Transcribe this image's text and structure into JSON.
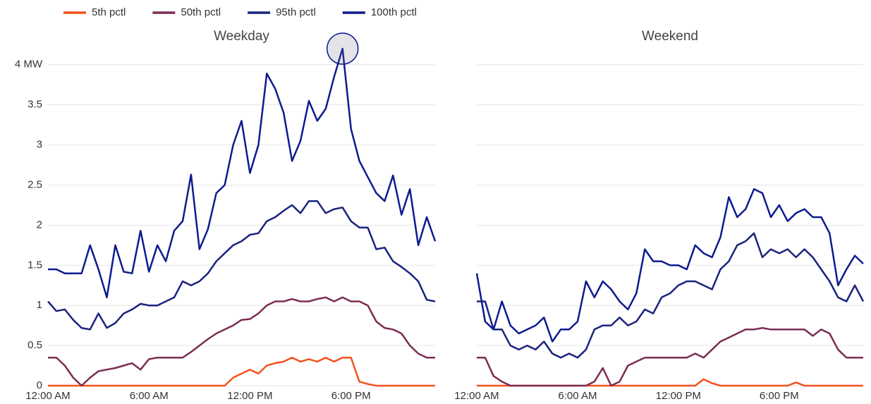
{
  "chart_data": [
    {
      "type": "line",
      "title": "Weekday",
      "x": [
        0,
        0.5,
        1,
        1.5,
        2,
        2.5,
        3,
        3.5,
        4,
        4.5,
        5,
        5.5,
        6,
        6.5,
        7,
        7.5,
        8,
        8.5,
        9,
        9.5,
        10,
        10.5,
        11,
        11.5,
        12,
        12.5,
        13,
        13.5,
        14,
        14.5,
        15,
        15.5,
        16,
        16.5,
        17,
        17.5,
        18,
        18.5,
        19,
        19.5,
        20,
        20.5,
        21,
        21.5,
        22,
        22.5,
        23
      ],
      "xlim": [
        0,
        23
      ],
      "xticks": [
        {
          "value": 0,
          "label": "12:00 AM"
        },
        {
          "value": 6,
          "label": "6:00 AM"
        },
        {
          "value": 12,
          "label": "12:00 PM"
        },
        {
          "value": 18,
          "label": "6:00 PM"
        }
      ],
      "ylim": [
        0,
        4.2
      ],
      "yticks": [
        0,
        0.5,
        1,
        1.5,
        2,
        2.5,
        3,
        3.5,
        {
          "value": 4,
          "label": "4 MW"
        }
      ],
      "grid": true,
      "series": [
        {
          "name": "5th pctl",
          "color": "#f4511e",
          "values": [
            0,
            0,
            0,
            0,
            0,
            0,
            0,
            0,
            0,
            0,
            0,
            0,
            0,
            0,
            0,
            0,
            0,
            0,
            0,
            0,
            0,
            0,
            0.1,
            0.15,
            0.2,
            0.15,
            0.25,
            0.28,
            0.3,
            0.35,
            0.3,
            0.33,
            0.3,
            0.35,
            0.3,
            0.35,
            0.35,
            0.05,
            0.02,
            0,
            0,
            0,
            0,
            0,
            0,
            0,
            0
          ]
        },
        {
          "name": "50th pctl",
          "color": "#7b2d52",
          "values": [
            0.35,
            0.35,
            0.25,
            0.1,
            0,
            0.1,
            0.18,
            0.2,
            0.22,
            0.25,
            0.28,
            0.2,
            0.33,
            0.35,
            0.35,
            0.35,
            0.35,
            0.42,
            0.5,
            0.58,
            0.65,
            0.7,
            0.75,
            0.82,
            0.83,
            0.9,
            1.0,
            1.05,
            1.05,
            1.08,
            1.05,
            1.05,
            1.08,
            1.1,
            1.05,
            1.1,
            1.05,
            1.05,
            1.0,
            0.8,
            0.72,
            0.7,
            0.65,
            0.5,
            0.4,
            0.35,
            0.35
          ]
        },
        {
          "name": "95th pctl",
          "color": "#1a237e",
          "values": [
            1.05,
            0.93,
            0.95,
            0.82,
            0.72,
            0.7,
            0.9,
            0.72,
            0.78,
            0.9,
            0.95,
            1.02,
            1.0,
            1.0,
            1.05,
            1.1,
            1.3,
            1.25,
            1.3,
            1.4,
            1.55,
            1.65,
            1.75,
            1.8,
            1.88,
            1.9,
            2.05,
            2.1,
            2.18,
            2.25,
            2.15,
            2.3,
            2.3,
            2.15,
            2.2,
            2.22,
            2.05,
            1.97,
            1.97,
            1.7,
            1.72,
            1.55,
            1.48,
            1.4,
            1.3,
            1.07,
            1.05
          ]
        },
        {
          "name": "100th pctl",
          "color": "#0d1b8f",
          "values": [
            1.45,
            1.45,
            1.4,
            1.4,
            1.4,
            1.75,
            1.45,
            1.1,
            1.75,
            1.42,
            1.4,
            1.93,
            1.42,
            1.75,
            1.55,
            1.93,
            2.05,
            2.63,
            1.7,
            1.95,
            2.4,
            2.5,
            3.0,
            3.3,
            2.65,
            3.0,
            3.89,
            3.7,
            3.4,
            2.8,
            3.05,
            3.55,
            3.3,
            3.45,
            3.85,
            4.2,
            3.2,
            2.8,
            2.6,
            2.4,
            2.3,
            2.62,
            2.13,
            2.45,
            1.75,
            2.1,
            1.8
          ]
        }
      ]
    },
    {
      "type": "line",
      "title": "Weekend",
      "x": [
        0,
        0.5,
        1,
        1.5,
        2,
        2.5,
        3,
        3.5,
        4,
        4.5,
        5,
        5.5,
        6,
        6.5,
        7,
        7.5,
        8,
        8.5,
        9,
        9.5,
        10,
        10.5,
        11,
        11.5,
        12,
        12.5,
        13,
        13.5,
        14,
        14.5,
        15,
        15.5,
        16,
        16.5,
        17,
        17.5,
        18,
        18.5,
        19,
        19.5,
        20,
        20.5,
        21,
        21.5,
        22,
        22.5,
        23
      ],
      "xlim": [
        0,
        23
      ],
      "xticks": [
        {
          "value": 0,
          "label": "12:00 AM"
        },
        {
          "value": 6,
          "label": "6:00 AM"
        },
        {
          "value": 12,
          "label": "12:00 PM"
        },
        {
          "value": 18,
          "label": "6:00 PM"
        }
      ],
      "ylim": [
        0,
        4.2
      ],
      "yticks": [
        0,
        0.5,
        1,
        1.5,
        2,
        2.5,
        3,
        3.5,
        4
      ],
      "grid": true,
      "series": [
        {
          "color": "#f4511e",
          "values": [
            0,
            0,
            0,
            0,
            0,
            0,
            0,
            0,
            0,
            0,
            0,
            0,
            0,
            0,
            0,
            0,
            0,
            0,
            0,
            0,
            0,
            0,
            0,
            0,
            0,
            0,
            0,
            0.08,
            0.03,
            0,
            0,
            0,
            0,
            0,
            0,
            0,
            0,
            0,
            0.04,
            0,
            0,
            0,
            0,
            0,
            0,
            0,
            0
          ]
        },
        {
          "color": "#7b2d52",
          "values": [
            0.35,
            0.35,
            0.12,
            0.05,
            0,
            0,
            0,
            0,
            0,
            0,
            0,
            0,
            0,
            0,
            0.05,
            0.22,
            0,
            0.05,
            0.25,
            0.3,
            0.35,
            0.35,
            0.35,
            0.35,
            0.35,
            0.35,
            0.4,
            0.35,
            0.45,
            0.55,
            0.6,
            0.65,
            0.7,
            0.7,
            0.72,
            0.7,
            0.7,
            0.7,
            0.7,
            0.7,
            0.62,
            0.7,
            0.65,
            0.45,
            0.35,
            0.35,
            0.35
          ]
        },
        {
          "color": "#1a237e",
          "values": [
            1.05,
            1.05,
            0.7,
            0.7,
            0.5,
            0.45,
            0.5,
            0.45,
            0.55,
            0.4,
            0.35,
            0.4,
            0.35,
            0.45,
            0.7,
            0.75,
            0.75,
            0.85,
            0.75,
            0.8,
            0.95,
            0.9,
            1.1,
            1.15,
            1.25,
            1.3,
            1.3,
            1.25,
            1.2,
            1.45,
            1.55,
            1.75,
            1.8,
            1.9,
            1.6,
            1.7,
            1.65,
            1.7,
            1.6,
            1.7,
            1.6,
            1.45,
            1.3,
            1.1,
            1.05,
            1.25,
            1.05
          ]
        },
        {
          "color": "#0d1b8f",
          "values": [
            1.4,
            0.8,
            0.7,
            1.05,
            0.75,
            0.65,
            0.7,
            0.75,
            0.85,
            0.55,
            0.7,
            0.7,
            0.8,
            1.3,
            1.1,
            1.3,
            1.2,
            1.05,
            0.95,
            1.15,
            1.7,
            1.55,
            1.55,
            1.5,
            1.5,
            1.45,
            1.75,
            1.65,
            1.6,
            1.85,
            2.35,
            2.1,
            2.2,
            2.45,
            2.4,
            2.1,
            2.25,
            2.05,
            2.15,
            2.2,
            2.1,
            2.1,
            1.9,
            1.25,
            1.45,
            1.62,
            1.52
          ]
        }
      ]
    }
  ]
}
